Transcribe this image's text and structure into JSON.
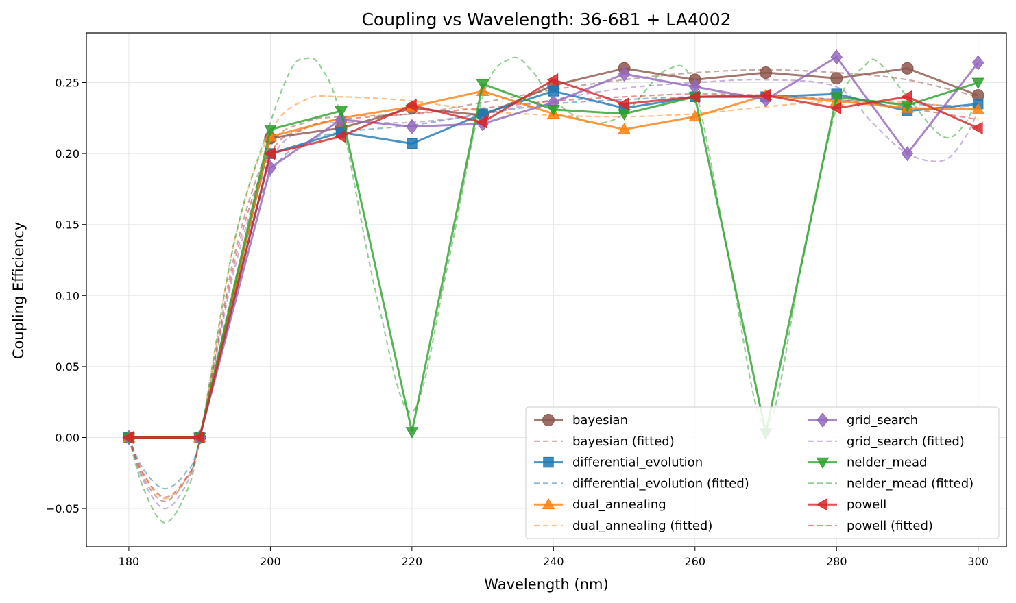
{
  "chart_data": {
    "type": "line",
    "title": "Coupling vs Wavelength: 36-681 + LA4002",
    "xlabel": "Wavelength (nm)",
    "ylabel": "Coupling Efficiency",
    "xlim": [
      174,
      304
    ],
    "ylim": [
      -0.077,
      0.285
    ],
    "x_ticks": [
      180,
      200,
      220,
      240,
      260,
      280,
      300
    ],
    "x_tick_labels": [
      "180",
      "200",
      "220",
      "240",
      "260",
      "280",
      "300"
    ],
    "y_ticks": [
      -0.05,
      0.0,
      0.05,
      0.1,
      0.15,
      0.2,
      0.25
    ],
    "y_tick_labels": [
      "−0.05",
      "0.00",
      "0.05",
      "0.10",
      "0.15",
      "0.20",
      "0.25"
    ],
    "grid": true,
    "legend_position": "lower-right",
    "legend_columns": 2,
    "x": [
      180,
      190,
      200,
      210,
      220,
      230,
      240,
      250,
      260,
      270,
      280,
      290,
      300
    ],
    "series": [
      {
        "name": "bayesian",
        "fitted_name": "bayesian (fitted)",
        "color": "#8c564b",
        "marker": "circle",
        "values": [
          0.0,
          0.0,
          0.211,
          0.218,
          0.232,
          0.227,
          0.248,
          0.26,
          0.252,
          0.257,
          0.253,
          0.26,
          0.241
        ],
        "fitted": [
          [
            180,
            0.0
          ],
          [
            182,
            -0.028
          ],
          [
            185,
            -0.045
          ],
          [
            188,
            -0.03
          ],
          [
            190,
            -0.002
          ],
          [
            195,
            0.13
          ],
          [
            200,
            0.205
          ],
          [
            205,
            0.222
          ],
          [
            210,
            0.226
          ],
          [
            220,
            0.228
          ],
          [
            230,
            0.236
          ],
          [
            240,
            0.245
          ],
          [
            250,
            0.252
          ],
          [
            260,
            0.257
          ],
          [
            270,
            0.259
          ],
          [
            280,
            0.257
          ],
          [
            290,
            0.252
          ],
          [
            300,
            0.24
          ]
        ]
      },
      {
        "name": "differential_evolution",
        "fitted_name": "differential_evolution (fitted)",
        "color": "#1f77b4",
        "marker": "square",
        "values": [
          0.0,
          0.0,
          0.2,
          0.215,
          0.207,
          0.228,
          0.244,
          0.232,
          0.24,
          0.24,
          0.242,
          0.23,
          0.235
        ],
        "fitted": [
          [
            180,
            0.0
          ],
          [
            182,
            -0.022
          ],
          [
            185,
            -0.036
          ],
          [
            188,
            -0.025
          ],
          [
            190,
            -0.002
          ],
          [
            195,
            0.11
          ],
          [
            200,
            0.185
          ],
          [
            205,
            0.208
          ],
          [
            210,
            0.215
          ],
          [
            220,
            0.22
          ],
          [
            230,
            0.228
          ],
          [
            240,
            0.235
          ],
          [
            250,
            0.238
          ],
          [
            260,
            0.24
          ],
          [
            270,
            0.24
          ],
          [
            280,
            0.238
          ],
          [
            290,
            0.235
          ],
          [
            300,
            0.233
          ]
        ]
      },
      {
        "name": "dual_annealing",
        "fitted_name": "dual_annealing (fitted)",
        "color": "#ff7f0e",
        "marker": "triangle-up",
        "values": [
          0.0,
          0.0,
          0.212,
          0.225,
          0.233,
          0.244,
          0.228,
          0.217,
          0.226,
          0.241,
          0.237,
          0.232,
          0.231
        ],
        "fitted": [
          [
            180,
            0.0
          ],
          [
            182,
            -0.026
          ],
          [
            185,
            -0.043
          ],
          [
            188,
            -0.03
          ],
          [
            190,
            -0.002
          ],
          [
            195,
            0.14
          ],
          [
            200,
            0.215
          ],
          [
            205,
            0.238
          ],
          [
            210,
            0.24
          ],
          [
            220,
            0.237
          ],
          [
            230,
            0.23
          ],
          [
            240,
            0.227
          ],
          [
            250,
            0.226
          ],
          [
            260,
            0.228
          ],
          [
            270,
            0.233
          ],
          [
            280,
            0.237
          ],
          [
            290,
            0.236
          ],
          [
            300,
            0.231
          ]
        ]
      },
      {
        "name": "grid_search",
        "fitted_name": "grid_search (fitted)",
        "color": "#9467bd",
        "marker": "diamond",
        "values": [
          0.0,
          0.0,
          0.19,
          0.224,
          0.219,
          0.221,
          0.236,
          0.256,
          0.247,
          0.238,
          0.268,
          0.2,
          0.264
        ],
        "fitted": [
          [
            180,
            0.0
          ],
          [
            182,
            -0.03
          ],
          [
            185,
            -0.05
          ],
          [
            188,
            -0.034
          ],
          [
            190,
            -0.002
          ],
          [
            195,
            0.12
          ],
          [
            200,
            0.195
          ],
          [
            205,
            0.218
          ],
          [
            210,
            0.222
          ],
          [
            220,
            0.222
          ],
          [
            230,
            0.228
          ],
          [
            240,
            0.238
          ],
          [
            250,
            0.246
          ],
          [
            260,
            0.25
          ],
          [
            270,
            0.252
          ],
          [
            280,
            0.247
          ],
          [
            285,
            0.222
          ],
          [
            290,
            0.2
          ],
          [
            295,
            0.195
          ],
          [
            298,
            0.21
          ],
          [
            300,
            0.23
          ]
        ]
      },
      {
        "name": "nelder_mead",
        "fitted_name": "nelder_mead (fitted)",
        "color": "#2ca02c",
        "marker": "triangle-down",
        "values": [
          0.0,
          0.0,
          0.217,
          0.23,
          0.004,
          0.249,
          0.231,
          0.228,
          0.24,
          0.003,
          0.24,
          0.234,
          0.25
        ],
        "fitted": [
          [
            180,
            0.0
          ],
          [
            182,
            -0.035
          ],
          [
            185,
            -0.06
          ],
          [
            188,
            -0.04
          ],
          [
            190,
            -0.002
          ],
          [
            195,
            0.14
          ],
          [
            200,
            0.222
          ],
          [
            203,
            0.26
          ],
          [
            205,
            0.267
          ],
          [
            207,
            0.262
          ],
          [
            210,
            0.225
          ],
          [
            215,
            0.1
          ],
          [
            220,
            0.018
          ],
          [
            225,
            0.12
          ],
          [
            230,
            0.24
          ],
          [
            234,
            0.267
          ],
          [
            237,
            0.258
          ],
          [
            240,
            0.238
          ],
          [
            245,
            0.222
          ],
          [
            250,
            0.228
          ],
          [
            256,
            0.259
          ],
          [
            260,
            0.245
          ],
          [
            265,
            0.12
          ],
          [
            270,
            0.008
          ],
          [
            275,
            0.12
          ],
          [
            280,
            0.232
          ],
          [
            284,
            0.262
          ],
          [
            286,
            0.264
          ],
          [
            290,
            0.24
          ],
          [
            295,
            0.212
          ],
          [
            298,
            0.22
          ],
          [
            300,
            0.24
          ]
        ]
      },
      {
        "name": "powell",
        "fitted_name": "powell (fitted)",
        "color": "#d62728",
        "marker": "triangle-left",
        "values": [
          0.0,
          0.0,
          0.2,
          0.212,
          0.234,
          0.222,
          0.252,
          0.235,
          0.24,
          0.241,
          0.232,
          0.24,
          0.218
        ],
        "fitted": [
          [
            180,
            0.0
          ],
          [
            182,
            -0.025
          ],
          [
            185,
            -0.042
          ],
          [
            188,
            -0.029
          ],
          [
            190,
            -0.002
          ],
          [
            195,
            0.125
          ],
          [
            200,
            0.2
          ],
          [
            205,
            0.218
          ],
          [
            210,
            0.224
          ],
          [
            220,
            0.228
          ],
          [
            230,
            0.232
          ],
          [
            240,
            0.237
          ],
          [
            250,
            0.24
          ],
          [
            260,
            0.242
          ],
          [
            270,
            0.241
          ],
          [
            280,
            0.238
          ],
          [
            290,
            0.232
          ],
          [
            300,
            0.224
          ]
        ]
      }
    ]
  }
}
